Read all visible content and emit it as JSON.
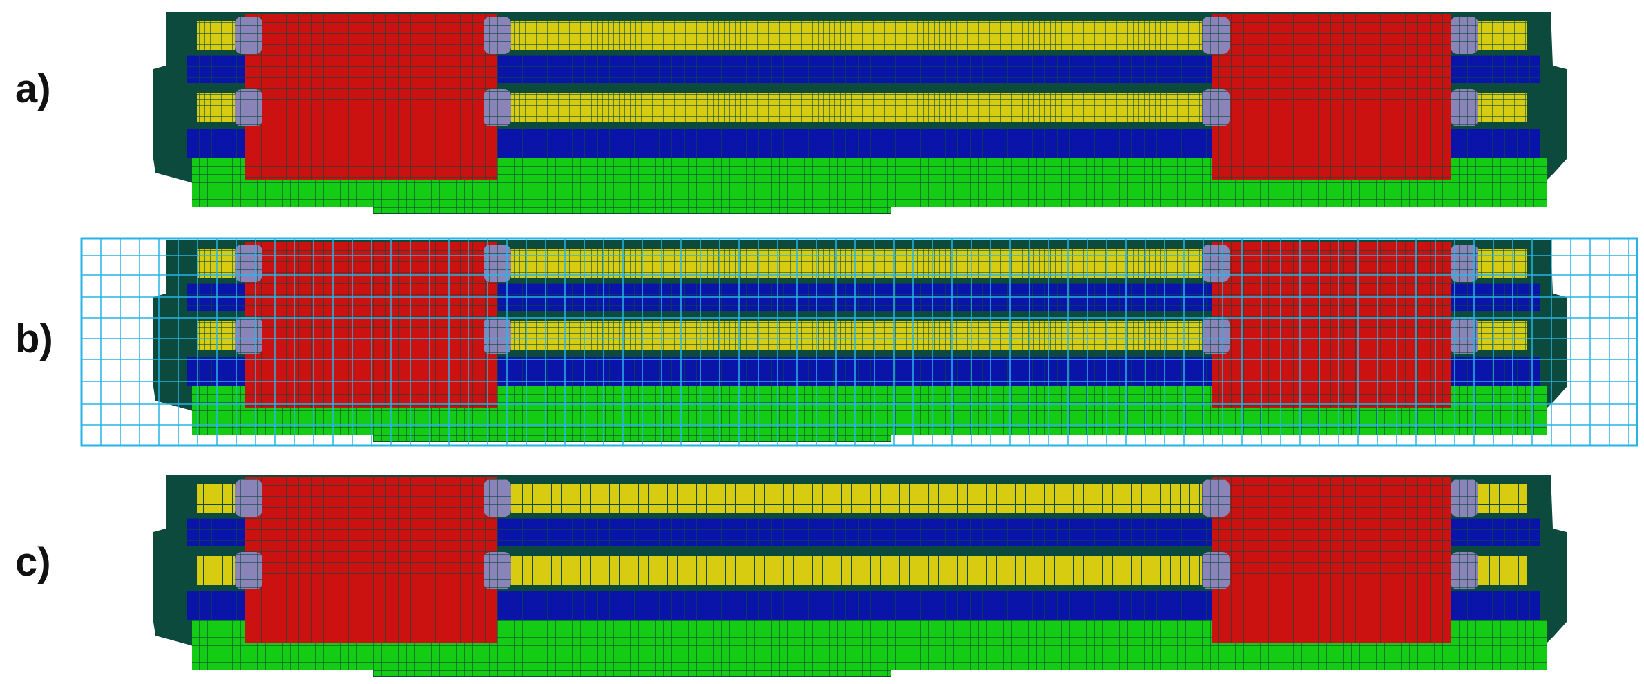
{
  "panels": [
    {
      "id": "a",
      "label": "a)",
      "overlay": false,
      "fine_yellow": false
    },
    {
      "id": "b",
      "label": "b)",
      "overlay": true,
      "fine_yellow": false
    },
    {
      "id": "c",
      "label": "c)",
      "overlay": false,
      "fine_yellow": true
    }
  ],
  "colors": {
    "red": "#cc1111",
    "blue": "#0a14a8",
    "yellow": "#d8cc10",
    "green": "#14cc14",
    "mesh_line": "#0b4a3c",
    "connector": "#8a84b8",
    "overlay_grid": "#27b3e6"
  }
}
